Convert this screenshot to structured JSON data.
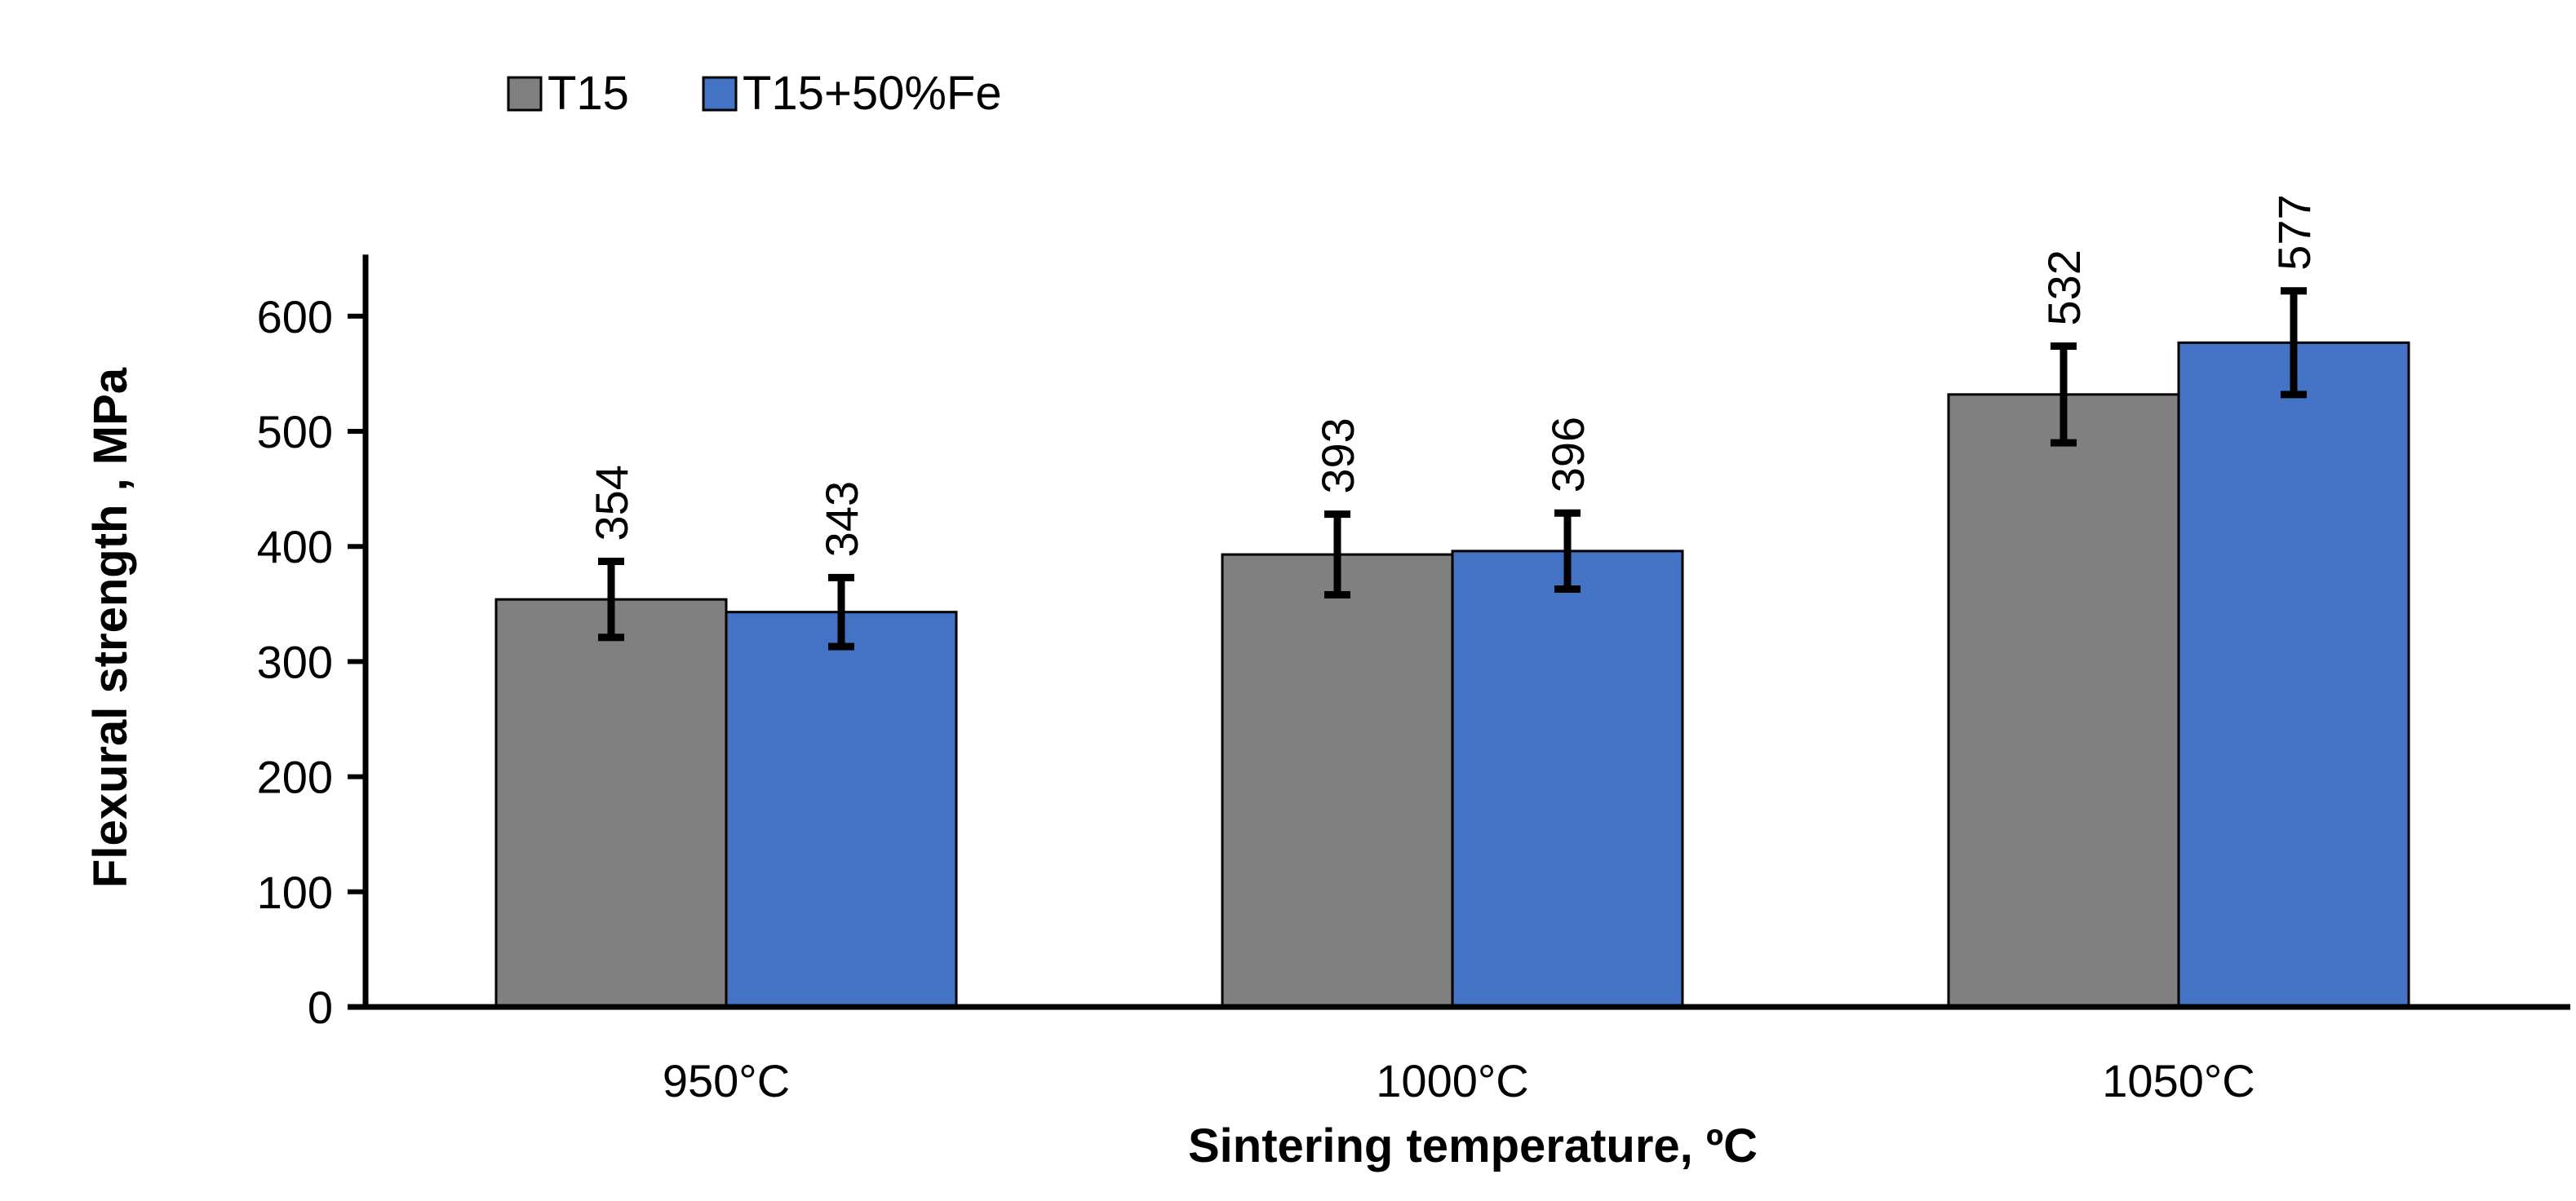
{
  "chart_data": {
    "type": "bar",
    "title": "",
    "xlabel": "Sintering temperature, ºC",
    "ylabel": "Flexural strength , MPa",
    "categories": [
      "950°C",
      "1000°C",
      "1050°C"
    ],
    "series": [
      {
        "name": "T15",
        "color": "#808080",
        "values": [
          354,
          393,
          532
        ],
        "errors": [
          33,
          35,
          42
        ],
        "labels": [
          "354",
          "393",
          "532"
        ]
      },
      {
        "name": "T15+50%Fe",
        "color": "#4472C4",
        "values": [
          343,
          396,
          577
        ],
        "errors": [
          30,
          33,
          45
        ],
        "labels": [
          "343",
          "396",
          "577"
        ]
      }
    ],
    "ylim": [
      0,
      650
    ],
    "yticks": [
      0,
      100,
      200,
      300,
      400,
      500,
      600
    ],
    "ytick_labels": [
      "0",
      "100",
      "200",
      "300",
      "400",
      "500",
      "600"
    ],
    "legend_position": "top-left",
    "grid": false
  }
}
